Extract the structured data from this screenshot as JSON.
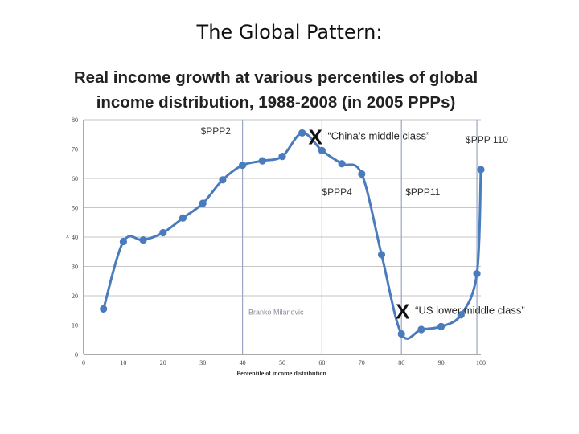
{
  "slide": {
    "title": "The Global Pattern:"
  },
  "chart_data": {
    "type": "line",
    "title": "Real income growth at various percentiles of global income distribution, 1988-2008 (in 2005 PPPs)",
    "title_lines": [
      "Real income growth at various percentiles of global",
      "income distribution, 1988-2008 (in 2005 PPPs)"
    ],
    "xlabel": "Percentile of income distribution",
    "ylabel": "x",
    "xlim": [
      0,
      100
    ],
    "ylim": [
      0,
      80
    ],
    "x_ticks": [
      "0",
      "10",
      "20",
      "30",
      "40",
      "50",
      "60",
      "70",
      "80",
      "90",
      "100"
    ],
    "y_ticks": [
      "0",
      "10",
      "20",
      "30",
      "40",
      "50",
      "60",
      "70",
      "80"
    ],
    "grid": true,
    "series": [
      {
        "x": [
          5,
          10,
          15,
          20,
          25,
          30,
          35,
          40,
          45,
          50,
          55,
          60,
          65,
          70,
          75,
          80,
          85,
          90,
          95,
          99,
          100
        ],
        "y": [
          15.5,
          38.5,
          39,
          41.5,
          46.5,
          51.5,
          59.5,
          64.5,
          66,
          67.5,
          75.5,
          69.5,
          65,
          61.5,
          34,
          7,
          8.5,
          9.5,
          13.5,
          27.5,
          63
        ],
        "color": "#4a7bbd"
      }
    ],
    "vlines": [
      {
        "x": 40,
        "label": "$PPP2"
      },
      {
        "x": 60,
        "label": "$PPP4"
      },
      {
        "x": 80,
        "label": "$PPP11"
      },
      {
        "x": 99,
        "label": "$PPP 110"
      }
    ],
    "annotations": [
      {
        "marker": "X",
        "text": "“China’s middle class”",
        "x": 59,
        "y": 75.5
      },
      {
        "marker": "X",
        "text": "“US lower middle class”",
        "x": 81,
        "y": 16
      },
      {
        "text": "Branko Milanovic",
        "x": 41.5,
        "y": 13.5
      }
    ]
  }
}
